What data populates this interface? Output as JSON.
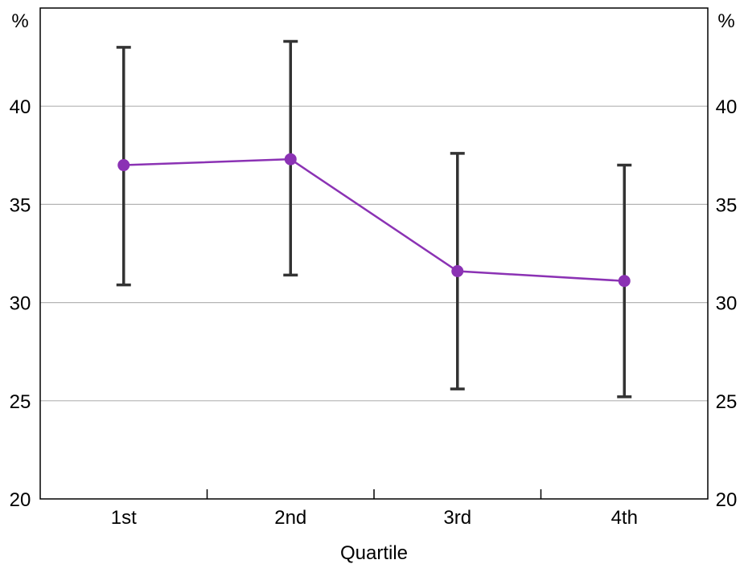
{
  "chart_data": {
    "type": "line",
    "categories": [
      "1st",
      "2nd",
      "3rd",
      "4th"
    ],
    "series": [
      {
        "values": [
          37.0,
          37.3,
          31.6,
          31.1
        ],
        "lower": [
          30.9,
          31.4,
          25.6,
          25.2
        ],
        "upper": [
          43.0,
          43.3,
          37.6,
          37.0
        ],
        "color": "#8b32b4"
      }
    ],
    "error_bar_color": "#333333",
    "xlabel": "Quartile",
    "unit_left": "%",
    "unit_right": "%",
    "ylim": [
      20,
      45
    ],
    "yticks": [
      20,
      25,
      30,
      35,
      40
    ],
    "gridlines": [
      25,
      30,
      35,
      40
    ],
    "grid": true
  }
}
